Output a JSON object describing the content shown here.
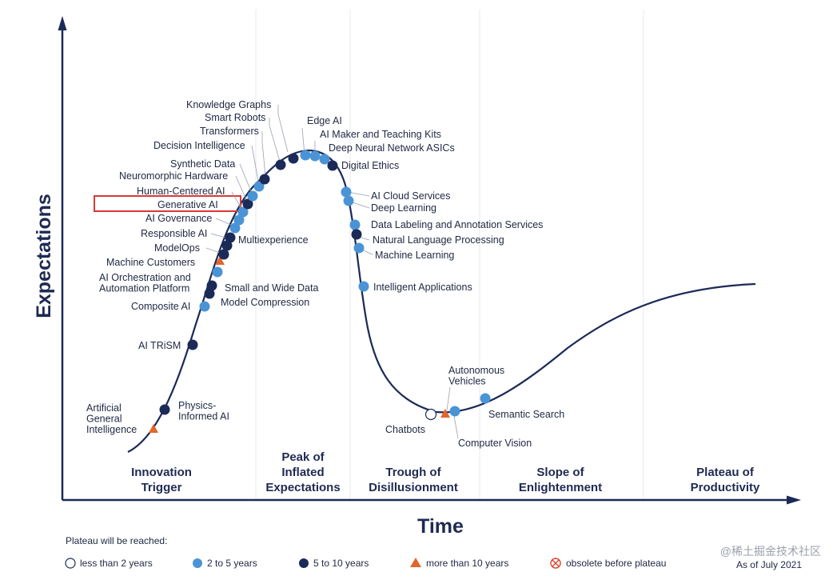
{
  "axes": {
    "y_label": "Expectations",
    "x_label": "Time"
  },
  "phases": [
    {
      "lines": [
        "Innovation",
        "Trigger"
      ]
    },
    {
      "lines": [
        "Peak of",
        "Inflated",
        "Expectations"
      ]
    },
    {
      "lines": [
        "Trough of",
        "Disillusionment"
      ]
    },
    {
      "lines": [
        "Slope of",
        "Enlightenment"
      ]
    },
    {
      "lines": [
        "Plateau of",
        "Productivity"
      ]
    }
  ],
  "technologies": [
    {
      "name": "Artificial General Intelligence",
      "lines": [
        "Artificial",
        "General",
        "Intelligence"
      ],
      "marker": "triangle"
    },
    {
      "name": "Physics-Informed AI",
      "lines": [
        "Physics-",
        "Informed AI"
      ],
      "marker": "navy"
    },
    {
      "name": "AI TRiSM",
      "lines": [
        "AI TRiSM"
      ],
      "marker": "navy"
    },
    {
      "name": "Composite AI",
      "lines": [
        "Composite AI"
      ],
      "marker": "blue"
    },
    {
      "name": "Model Compression",
      "lines": [
        "Model Compression"
      ],
      "marker": "navy"
    },
    {
      "name": "Small and Wide Data",
      "lines": [
        "Small and Wide Data"
      ],
      "marker": "navy"
    },
    {
      "name": "AI Orchestration and Automation Platform",
      "lines": [
        "AI Orchestration and",
        "Automation Platform"
      ],
      "marker": "blue"
    },
    {
      "name": "Machine Customers",
      "lines": [
        "Machine Customers"
      ],
      "marker": "triangle"
    },
    {
      "name": "ModelOps",
      "lines": [
        "ModelOps"
      ],
      "marker": "navy"
    },
    {
      "name": "Responsible AI",
      "lines": [
        "Responsible AI"
      ],
      "marker": "navy"
    },
    {
      "name": "Multiexperience",
      "lines": [
        "Multiexperience"
      ],
      "marker": "navy"
    },
    {
      "name": "AI Governance",
      "lines": [
        "AI Governance"
      ],
      "marker": "blue"
    },
    {
      "name": "Generative AI",
      "lines": [
        "Generative AI"
      ],
      "marker": "blue",
      "highlight": true
    },
    {
      "name": "Human-Centered AI",
      "lines": [
        "Human-Centered AI"
      ],
      "marker": "navy"
    },
    {
      "name": "Neuromorphic Hardware",
      "lines": [
        "Neuromorphic Hardware"
      ],
      "marker": "blue"
    },
    {
      "name": "Synthetic Data",
      "lines": [
        "Synthetic Data"
      ],
      "marker": "blue"
    },
    {
      "name": "Decision Intelligence",
      "lines": [
        "Decision Intelligence"
      ],
      "marker": "navy"
    },
    {
      "name": "Transformers",
      "lines": [
        "Transformers"
      ],
      "marker": "navy"
    },
    {
      "name": "Smart Robots",
      "lines": [
        "Smart Robots"
      ],
      "marker": "navy"
    },
    {
      "name": "Knowledge Graphs",
      "lines": [
        "Knowledge Graphs"
      ],
      "marker": "blue"
    },
    {
      "name": "Edge AI",
      "lines": [
        "Edge AI"
      ],
      "marker": "blue"
    },
    {
      "name": "AI Maker and Teaching Kits",
      "lines": [
        "AI Maker and Teaching Kits"
      ],
      "marker": "blue"
    },
    {
      "name": "Deep Neural Network ASICs",
      "lines": [
        "Deep Neural Network ASICs"
      ],
      "marker": "navy"
    },
    {
      "name": "Digital Ethics",
      "lines": [
        "Digital Ethics"
      ],
      "marker": "navy"
    },
    {
      "name": "AI Cloud Services",
      "lines": [
        "AI Cloud Services"
      ],
      "marker": "blue"
    },
    {
      "name": "Deep Learning",
      "lines": [
        "Deep Learning"
      ],
      "marker": "blue"
    },
    {
      "name": "Data Labeling and Annotation Services",
      "lines": [
        "Data Labeling and Annotation Services"
      ],
      "marker": "blue"
    },
    {
      "name": "Natural Language Processing",
      "lines": [
        "Natural Language Processing"
      ],
      "marker": "navy"
    },
    {
      "name": "Machine Learning",
      "lines": [
        "Machine Learning"
      ],
      "marker": "blue"
    },
    {
      "name": "Intelligent Applications",
      "lines": [
        "Intelligent Applications"
      ],
      "marker": "blue"
    },
    {
      "name": "Chatbots",
      "lines": [
        "Chatbots"
      ],
      "marker": "white"
    },
    {
      "name": "Autonomous Vehicles",
      "lines": [
        "Autonomous",
        "Vehicles"
      ],
      "marker": "triangle"
    },
    {
      "name": "Computer Vision",
      "lines": [
        "Computer Vision"
      ],
      "marker": "blue"
    },
    {
      "name": "Semantic Search",
      "lines": [
        "Semantic Search"
      ],
      "marker": "blue"
    }
  ],
  "legend": {
    "title": "Plateau will be reached:",
    "items": [
      {
        "marker": "white",
        "label": "less than 2 years"
      },
      {
        "marker": "blue",
        "label": "2 to 5 years"
      },
      {
        "marker": "navy",
        "label": "5 to 10 years"
      },
      {
        "marker": "triangle",
        "label": "more than 10 years"
      },
      {
        "marker": "obsolete",
        "label": "obsolete before plateau"
      }
    ]
  },
  "as_of": "As of July 2021",
  "watermark": "@稀土掘金技术社区",
  "colors": {
    "navy": "#1b2a57",
    "blue": "#4a94d6",
    "triangle": "#e0662c",
    "obsolete": "#d9442f",
    "highlight": "#d83a34",
    "curve": "#1b2a57",
    "axis": "#1b2a57",
    "divider": "#e6e8ee"
  }
}
